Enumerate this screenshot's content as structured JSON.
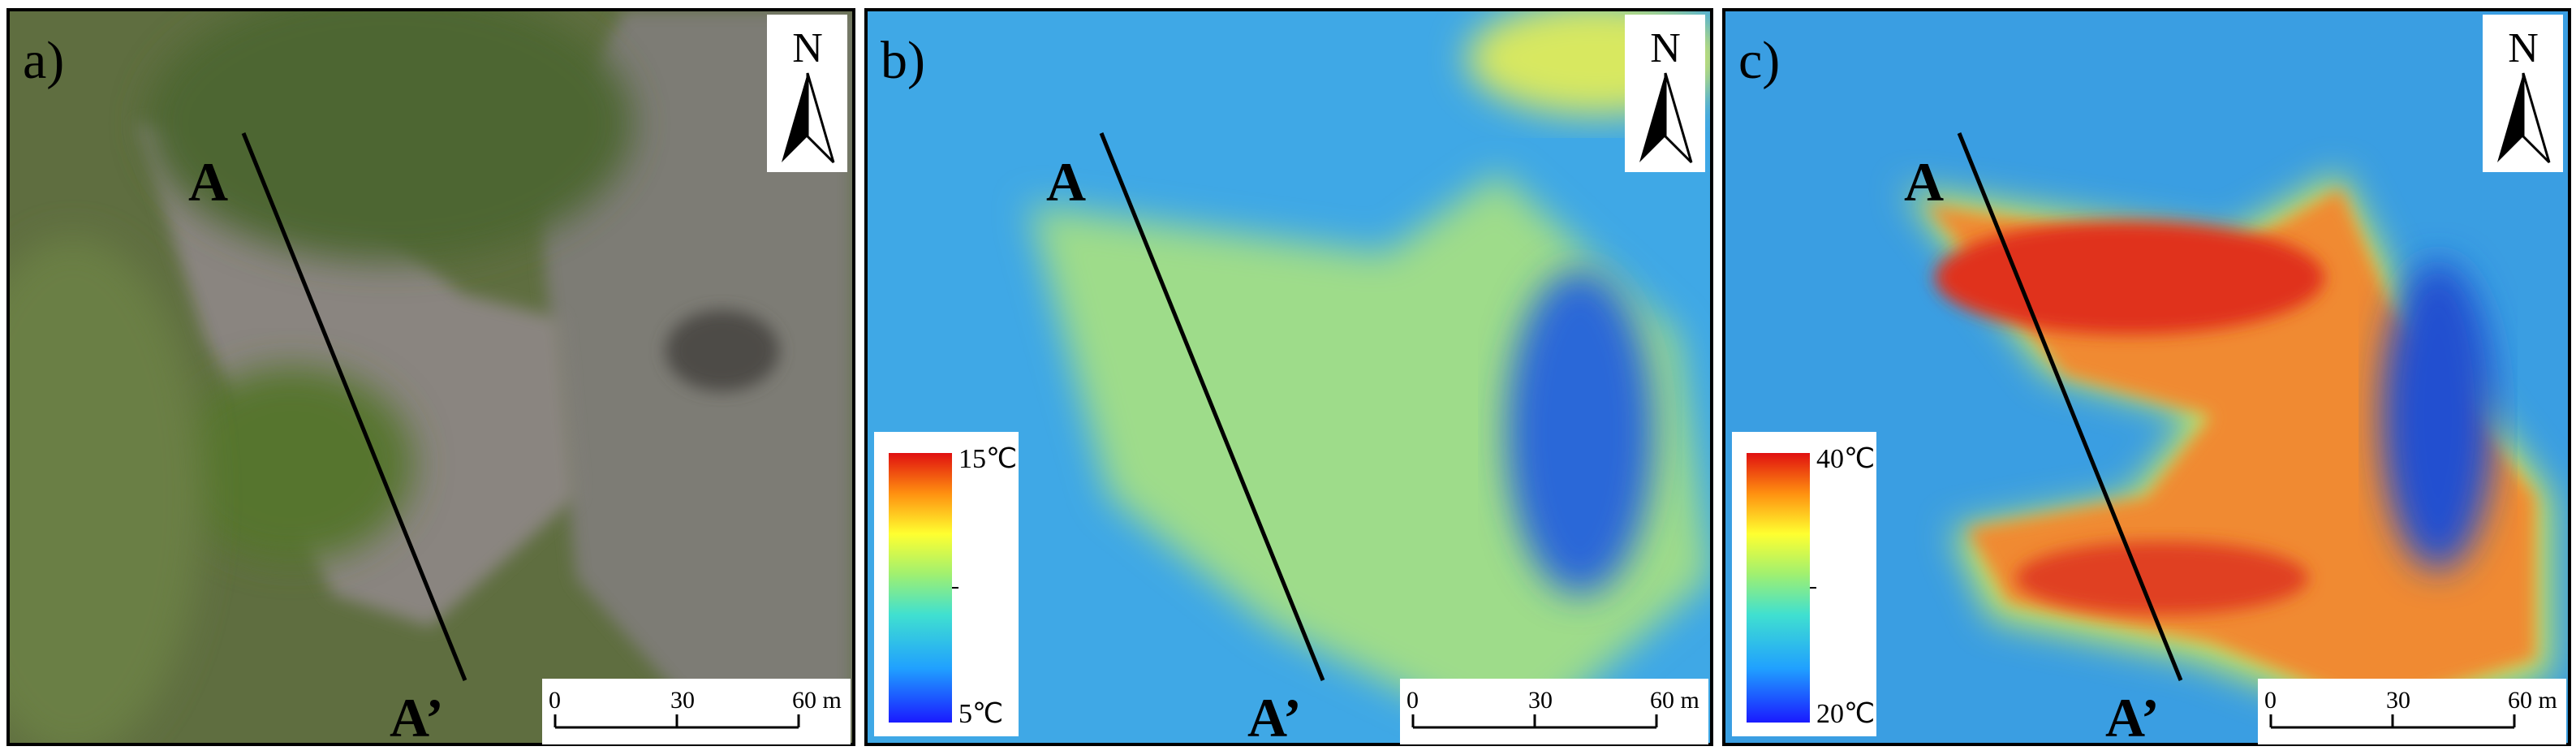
{
  "panels": [
    {
      "label": "a)",
      "north": "N",
      "profile": {
        "start": "A",
        "end": "A’"
      },
      "scale_bar": [
        "0",
        "30",
        "60 m"
      ]
    },
    {
      "label": "b)",
      "north": "N",
      "profile": {
        "start": "A",
        "end": "A’"
      },
      "scale_bar": [
        "0",
        "30",
        "60 m"
      ],
      "colorbar": {
        "max": "15℃",
        "min": "5℃"
      }
    },
    {
      "label": "c)",
      "north": "N",
      "profile": {
        "start": "A",
        "end": "A’"
      },
      "scale_bar": [
        "0",
        "30",
        "60 m"
      ],
      "colorbar": {
        "max": "40℃",
        "min": "20℃"
      }
    }
  ]
}
